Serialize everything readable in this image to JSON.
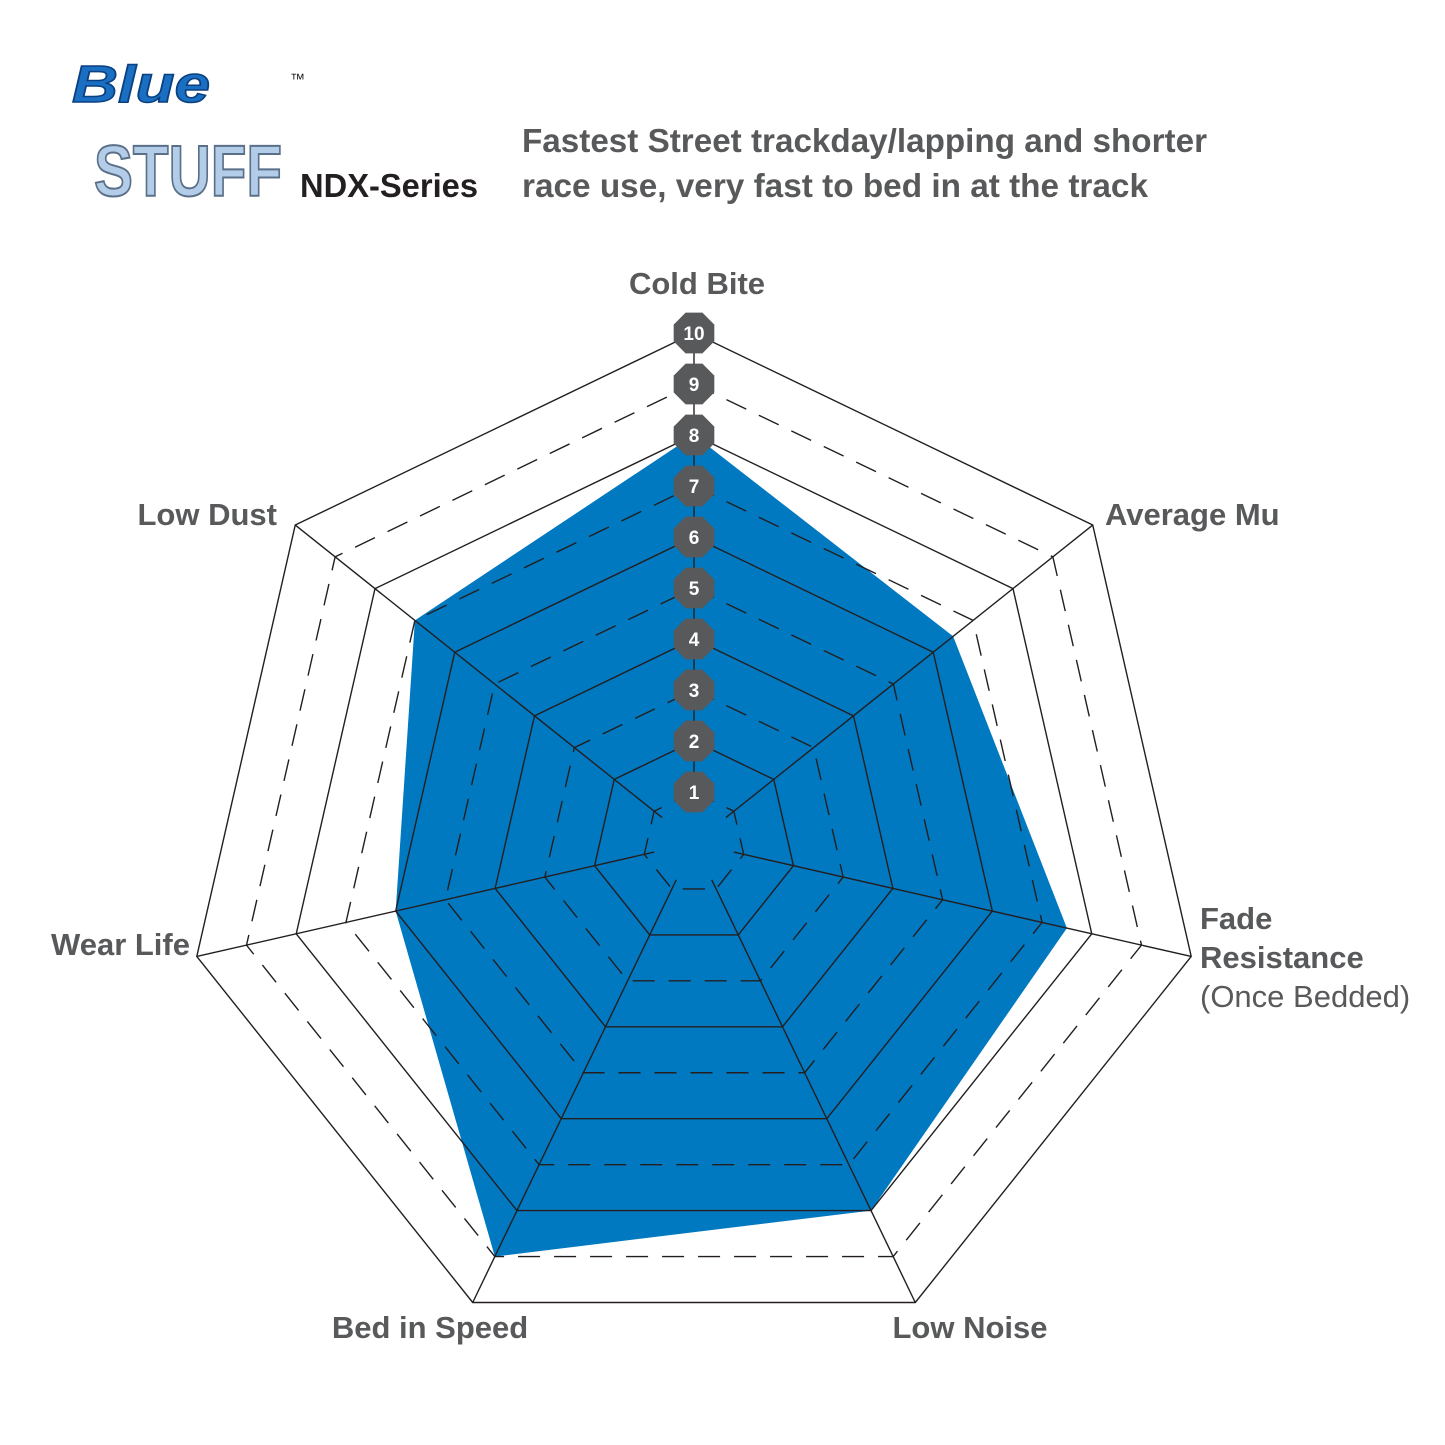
{
  "logo": {
    "line1": "Blue",
    "line2": "STUFF",
    "tm": "™"
  },
  "header": {
    "series": "NDX-Series",
    "description_line1": "Fastest Street trackday/lapping and shorter",
    "description_line2": "race use, very fast to bed in at the track"
  },
  "colors": {
    "fill": "#0079c1",
    "text": "#58595b",
    "badge": "#58595b",
    "grid": "#231f20"
  },
  "chart_data": {
    "type": "radar",
    "scale_min": 0,
    "scale_max": 10,
    "tick_labels": [
      "1",
      "2",
      "3",
      "4",
      "5",
      "6",
      "7",
      "8",
      "9",
      "10"
    ],
    "axes": [
      {
        "label": "Cold Bite",
        "sublabel": "",
        "value": 8
      },
      {
        "label": "Average Mu",
        "sublabel": "",
        "value": 6.5
      },
      {
        "label": "Fade",
        "label2": "Resistance",
        "sublabel": "(Once Bedded)",
        "value": 7.5
      },
      {
        "label": "Low Noise",
        "sublabel": "",
        "value": 8
      },
      {
        "label": "Bed in Speed",
        "sublabel": "",
        "value": 9
      },
      {
        "label": "Wear Life",
        "sublabel": "",
        "value": 6
      },
      {
        "label": "Low Dust",
        "sublabel": "",
        "value": 7
      }
    ],
    "grid": "solid even rings, dashed odd rings"
  }
}
